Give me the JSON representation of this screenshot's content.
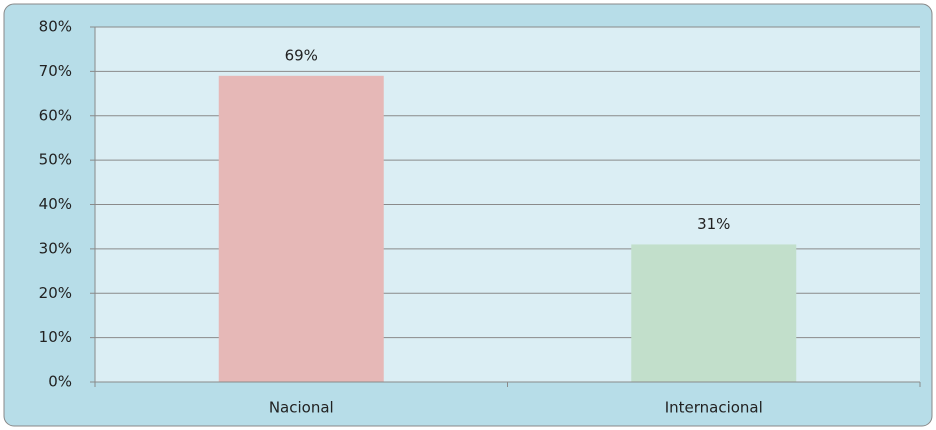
{
  "chart_data": {
    "type": "bar",
    "categories": [
      "Nacional",
      "Internacional"
    ],
    "values": [
      69,
      31
    ],
    "value_labels": [
      "69%",
      "31%"
    ],
    "colors": [
      "#e6b8b7",
      "#c2dfcb"
    ],
    "ylim": [
      0,
      80
    ],
    "yticks": [
      {
        "value": 0,
        "label": "0%"
      },
      {
        "value": 10,
        "label": "10%"
      },
      {
        "value": 20,
        "label": "20%"
      },
      {
        "value": 30,
        "label": "30%"
      },
      {
        "value": 40,
        "label": "40%"
      },
      {
        "value": 50,
        "label": "50%"
      },
      {
        "value": 60,
        "label": "60%"
      },
      {
        "value": 70,
        "label": "70%"
      },
      {
        "value": 80,
        "label": "80%"
      }
    ],
    "grid": true
  }
}
